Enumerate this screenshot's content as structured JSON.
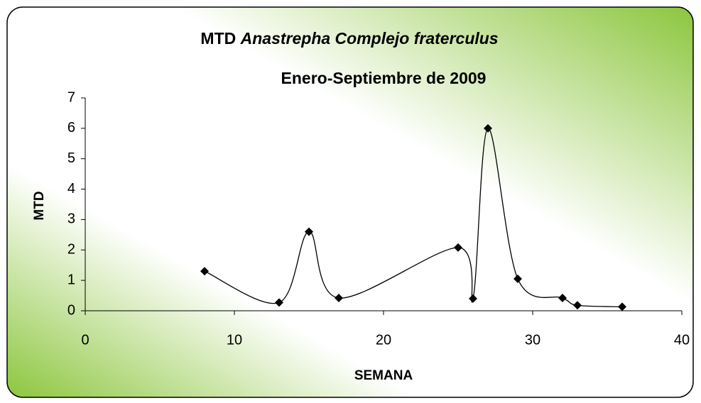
{
  "chart_data": {
    "type": "scatter",
    "title_parts": [
      "MTD",
      "Anastrepha Complejo fraterculus"
    ],
    "subtitle": "Enero-Septiembre de 2009",
    "x_label": "SEMANA",
    "y_label": "MTD",
    "series": [
      {
        "color": "#000000",
        "x": [
          8,
          13,
          15,
          17,
          25,
          26,
          27,
          29,
          32,
          33,
          36
        ],
        "values": [
          1.3,
          0.27,
          2.6,
          0.42,
          2.08,
          0.4,
          6.0,
          1.05,
          0.42,
          0.18,
          0.13
        ]
      }
    ],
    "smooth": true,
    "xlim": [
      0,
      40
    ],
    "xticks": [
      0,
      10,
      20,
      30,
      40
    ],
    "ylim": [
      0,
      7
    ],
    "yticks": [
      0,
      1,
      2,
      3,
      4,
      5,
      6,
      7
    ]
  }
}
